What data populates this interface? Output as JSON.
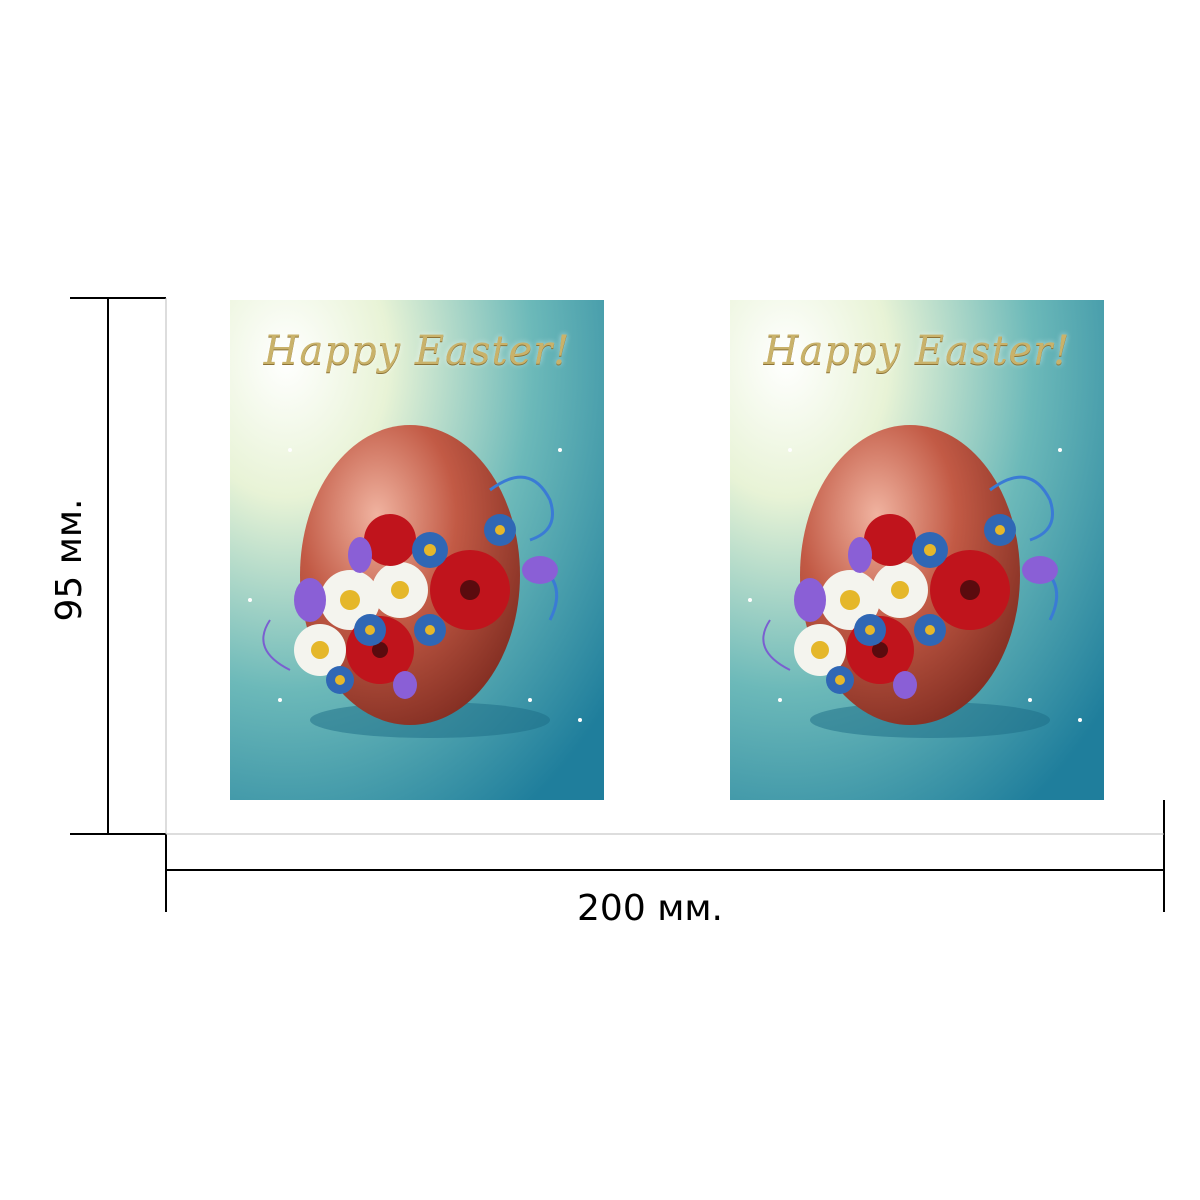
{
  "dimensions": {
    "width_label": "200 мм.",
    "height_label": "95 мм."
  },
  "cards": [
    {
      "title": "Happy Easter!"
    },
    {
      "title": "Happy Easter!"
    }
  ],
  "colors": {
    "background_teal": "#2b8fa6",
    "background_light": "#e9f4dc",
    "egg": "#b8493a",
    "title_gold": "#c9b26a",
    "flower_red": "#c0141c",
    "flower_blue": "#2f67b5",
    "flower_purple": "#8a5fd6",
    "flower_white": "#f4f4ee",
    "dimension_lines": "#000000"
  }
}
